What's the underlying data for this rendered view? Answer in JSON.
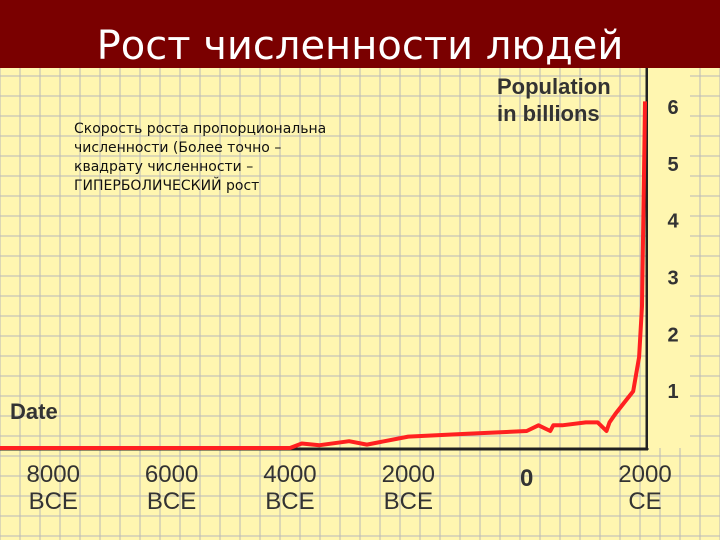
{
  "slide": {
    "title": "Рост численности людей",
    "note_lines": [
      "Скорость роста пропорциональна",
      "численности (Более точно –",
      "квадрату численности –",
      "ГИПЕРБОЛИЧЕСКИЙ рост"
    ]
  },
  "colors": {
    "title_bar": "#7a0000",
    "plot_background": "#fff6b0",
    "grid": "#b8b8b8",
    "line": "#ff2020",
    "axis": "#222222"
  },
  "chart_data": {
    "type": "line",
    "title": "",
    "xlabel": "Date",
    "ylabel": "Population in billions",
    "ylabel_lines": [
      "Population",
      "in billions"
    ],
    "x_ticks": [
      {
        "value": -8000,
        "lines": [
          "8000",
          "BCE"
        ]
      },
      {
        "value": -6000,
        "lines": [
          "6000",
          "BCE"
        ]
      },
      {
        "value": -4000,
        "lines": [
          "4000",
          "BCE"
        ]
      },
      {
        "value": -2000,
        "lines": [
          "2000",
          "BCE"
        ]
      },
      {
        "value": 0,
        "lines": [
          "0"
        ]
      },
      {
        "value": 2000,
        "lines": [
          "2000",
          "CE"
        ]
      }
    ],
    "y_ticks": [
      "1",
      "2",
      "3",
      "4",
      "5",
      "6"
    ],
    "xlim": [
      -8900,
      2000
    ],
    "ylim": [
      0,
      6.6
    ],
    "grid": true,
    "series": [
      {
        "x": [
          -8900,
          -4000,
          -3800,
          -3500,
          -3000,
          -2700,
          -2000,
          -1000,
          0,
          200,
          400,
          450,
          600,
          1000,
          1200,
          1350,
          1400,
          1500,
          1650,
          1800,
          1900,
          1950,
          1990,
          2000
        ],
        "y": [
          0.0,
          0.0,
          0.08,
          0.05,
          0.12,
          0.06,
          0.2,
          0.25,
          0.3,
          0.4,
          0.3,
          0.4,
          0.4,
          0.45,
          0.45,
          0.3,
          0.45,
          0.6,
          0.8,
          1.0,
          1.6,
          2.5,
          5.3,
          6.1
        ]
      }
    ]
  }
}
